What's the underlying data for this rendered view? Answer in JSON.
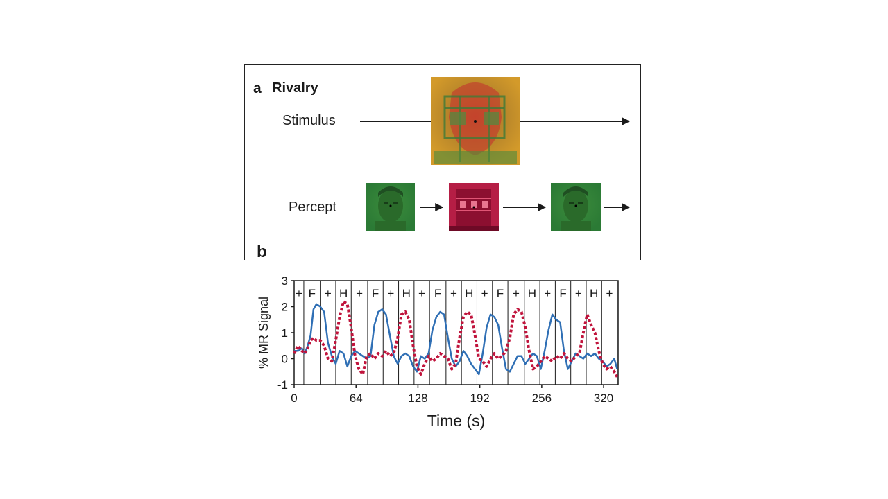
{
  "panel_a": {
    "letter": "a",
    "title": "Rivalry",
    "stimulus_label": "Stimulus",
    "percept_label": "Percept",
    "stimulus_image": "face-house-overlay",
    "percept_sequence": [
      "face",
      "house",
      "face"
    ]
  },
  "panel_b": {
    "letter": "b"
  },
  "colors": {
    "face_series": "#2f6fb5",
    "house_series": "#c0143c",
    "axis": "#1a1a1a"
  },
  "chart_data": {
    "type": "line",
    "xlabel": "Time (s)",
    "ylabel": "% MR Signal",
    "xlim": [
      0,
      335
    ],
    "ylim": [
      -1,
      3
    ],
    "xticks": [
      0,
      64,
      128,
      192,
      256,
      320
    ],
    "yticks": [
      -1,
      0,
      1,
      2,
      3
    ],
    "grid": false,
    "condition_boundaries": [
      10,
      27,
      43,
      59,
      76,
      92,
      108,
      124,
      140,
      157,
      173,
      189,
      205,
      221,
      238,
      254,
      270,
      286,
      302,
      318,
      334
    ],
    "condition_labels": [
      "+",
      "F",
      "+",
      "H",
      "+",
      "F",
      "+",
      "H",
      "+",
      "F",
      "+",
      "H",
      "+",
      "F",
      "+",
      "H",
      "+",
      "F",
      "+",
      "H",
      "+"
    ],
    "series": [
      {
        "line_style": "solid",
        "x": [
          0,
          4,
          8,
          11,
          14,
          17,
          20,
          23,
          27,
          31,
          35,
          39,
          43,
          47,
          51,
          55,
          59,
          63,
          67,
          71,
          75,
          79,
          83,
          87,
          91,
          95,
          99,
          103,
          107,
          111,
          115,
          119,
          123,
          127,
          131,
          135,
          139,
          143,
          147,
          151,
          155,
          159,
          163,
          167,
          171,
          175,
          179,
          183,
          187,
          191,
          195,
          199,
          203,
          207,
          211,
          215,
          219,
          223,
          227,
          231,
          235,
          239,
          243,
          247,
          251,
          255,
          259,
          263,
          267,
          271,
          275,
          279,
          283,
          287,
          291,
          295,
          299,
          303,
          307,
          311,
          315,
          319,
          323,
          327,
          331,
          334
        ],
        "y": [
          0.3,
          0.3,
          0.4,
          0.2,
          0.5,
          0.9,
          1.9,
          2.1,
          2.0,
          1.8,
          0.6,
          0.1,
          -0.2,
          0.3,
          0.2,
          -0.3,
          0.1,
          0.3,
          0.2,
          0.1,
          0.0,
          0.1,
          1.3,
          1.8,
          1.9,
          1.7,
          0.9,
          0.1,
          -0.2,
          0.1,
          0.2,
          0.1,
          -0.3,
          -0.5,
          0.1,
          0.0,
          0.2,
          1.1,
          1.6,
          1.8,
          1.7,
          0.8,
          0.0,
          -0.3,
          -0.1,
          0.3,
          0.1,
          -0.2,
          -0.4,
          -0.6,
          0.2,
          1.2,
          1.7,
          1.6,
          1.3,
          0.4,
          -0.4,
          -0.5,
          -0.2,
          0.1,
          0.1,
          -0.2,
          0.0,
          0.2,
          0.1,
          -0.4,
          0.3,
          1.1,
          1.7,
          1.5,
          1.4,
          0.3,
          -0.4,
          -0.1,
          0.2,
          0.1,
          0.0,
          0.2,
          0.1,
          0.2,
          0.0,
          -0.1,
          -0.3,
          -0.2,
          0.0,
          -0.4
        ]
      },
      {
        "line_style": "dotted",
        "x": [
          0,
          4,
          8,
          11,
          14,
          17,
          20,
          23,
          27,
          31,
          35,
          39,
          43,
          47,
          51,
          55,
          59,
          63,
          67,
          71,
          75,
          79,
          83,
          87,
          91,
          95,
          99,
          103,
          107,
          111,
          115,
          119,
          123,
          127,
          131,
          135,
          139,
          143,
          147,
          151,
          155,
          159,
          163,
          167,
          171,
          175,
          179,
          183,
          187,
          191,
          195,
          199,
          203,
          207,
          211,
          215,
          219,
          223,
          227,
          231,
          235,
          239,
          243,
          247,
          251,
          255,
          259,
          263,
          267,
          271,
          275,
          279,
          283,
          287,
          291,
          295,
          299,
          303,
          307,
          311,
          315,
          319,
          323,
          327,
          331,
          334
        ],
        "y": [
          0.2,
          0.5,
          0.3,
          0.2,
          0.4,
          0.7,
          0.8,
          0.7,
          0.7,
          0.5,
          0.0,
          -0.1,
          0.7,
          1.6,
          2.2,
          2.1,
          1.2,
          0.1,
          -0.4,
          -0.6,
          0.1,
          0.2,
          0.0,
          0.2,
          0.1,
          0.3,
          0.1,
          0.2,
          0.8,
          1.7,
          1.8,
          1.5,
          0.5,
          -0.3,
          -0.6,
          -0.2,
          0.1,
          -0.1,
          0.0,
          0.2,
          0.1,
          0.0,
          -0.4,
          -0.2,
          0.8,
          1.6,
          1.8,
          1.7,
          0.9,
          0.0,
          -0.1,
          -0.3,
          0.0,
          0.2,
          0.0,
          0.1,
          0.3,
          0.8,
          1.7,
          1.9,
          1.8,
          1.2,
          0.3,
          -0.4,
          -0.3,
          -0.1,
          0.1,
          0.0,
          -0.1,
          0.1,
          0.0,
          0.2,
          0.0,
          -0.1,
          0.1,
          0.2,
          1.0,
          1.7,
          1.3,
          1.0,
          0.3,
          -0.2,
          -0.4,
          -0.3,
          -0.5,
          -0.7
        ]
      }
    ]
  }
}
